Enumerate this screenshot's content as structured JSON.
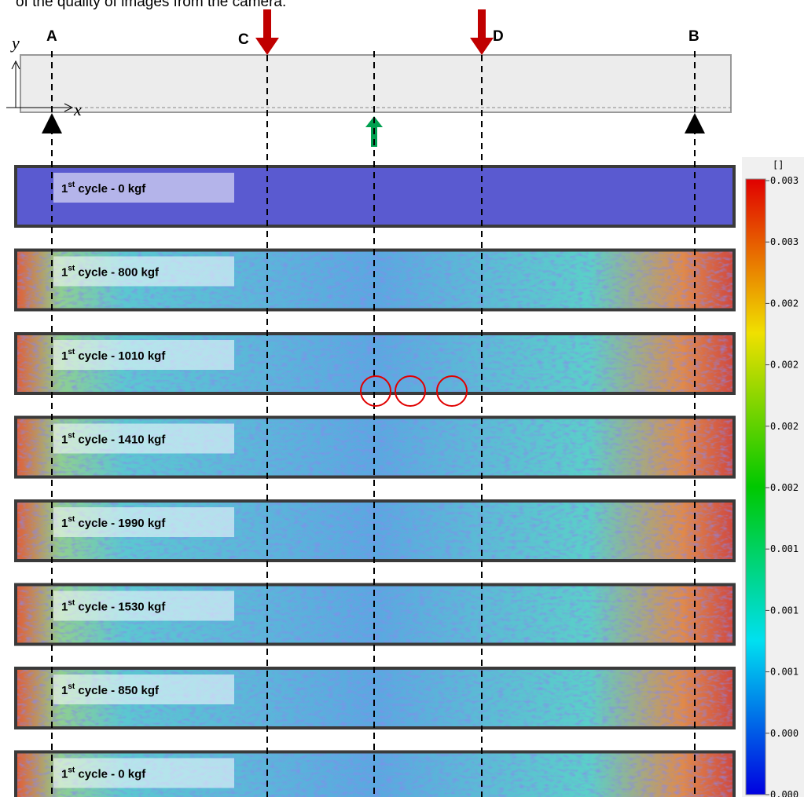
{
  "caption": "of the quality of images from the camera.",
  "labels": {
    "a": "A",
    "c": "C",
    "d": "D",
    "b": "B",
    "y_axis": "y",
    "x_axis": "x"
  },
  "panels": [
    {
      "cycle": "1",
      "suffix": "st",
      "text": " cycle - 0 kgf"
    },
    {
      "cycle": "1",
      "suffix": "st",
      "text": " cycle - 800 kgf"
    },
    {
      "cycle": "1",
      "suffix": "st",
      "text": " cycle - 1010 kgf"
    },
    {
      "cycle": "1",
      "suffix": "st",
      "text": " cycle - 1410 kgf"
    },
    {
      "cycle": "1",
      "suffix": "st",
      "text": " cycle - 1990 kgf"
    },
    {
      "cycle": "1",
      "suffix": "st",
      "text": " cycle - 1530 kgf"
    },
    {
      "cycle": "1",
      "suffix": "st",
      "text": " cycle - 850 kgf"
    },
    {
      "cycle": "1",
      "suffix": "st",
      "text": " cycle - 0 kgf"
    }
  ],
  "colorbar": {
    "unit": "[]",
    "ticks": [
      "0.003",
      "0.003",
      "0.002",
      "0.002",
      "0.002",
      "0.002",
      "0.001",
      "0.001",
      "0.001",
      "0.000",
      "0.000"
    ]
  }
}
